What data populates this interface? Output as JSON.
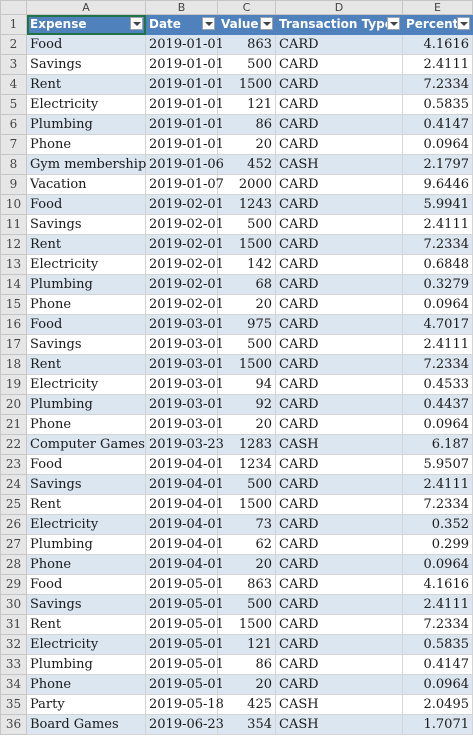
{
  "columns": [
    "A",
    "B",
    "C",
    "D",
    "E"
  ],
  "header": {
    "row_number": "1",
    "labels": [
      "Expense",
      "Date",
      "Value",
      "Transaction Type",
      "Percent"
    ]
  },
  "colors": {
    "header_bg": "#4f81bd",
    "band_bg": "#dce6f1",
    "grid": "#d4d4d4"
  },
  "rows": [
    {
      "n": "2",
      "expense": "Food",
      "date": "2019-01-01",
      "value": "863",
      "type": "CARD",
      "percent": "4.1616"
    },
    {
      "n": "3",
      "expense": "Savings",
      "date": "2019-01-01",
      "value": "500",
      "type": "CARD",
      "percent": "2.4111"
    },
    {
      "n": "4",
      "expense": "Rent",
      "date": "2019-01-01",
      "value": "1500",
      "type": "CARD",
      "percent": "7.2334"
    },
    {
      "n": "5",
      "expense": "Electricity",
      "date": "2019-01-01",
      "value": "121",
      "type": "CARD",
      "percent": "0.5835"
    },
    {
      "n": "6",
      "expense": "Plumbing",
      "date": "2019-01-01",
      "value": "86",
      "type": "CARD",
      "percent": "0.4147"
    },
    {
      "n": "7",
      "expense": "Phone",
      "date": "2019-01-01",
      "value": "20",
      "type": "CARD",
      "percent": "0.0964"
    },
    {
      "n": "8",
      "expense": "Gym membership",
      "date": "2019-01-06",
      "value": "452",
      "type": "CASH",
      "percent": "2.1797"
    },
    {
      "n": "9",
      "expense": "Vacation",
      "date": "2019-01-07",
      "value": "2000",
      "type": "CARD",
      "percent": "9.6446"
    },
    {
      "n": "10",
      "expense": "Food",
      "date": "2019-02-01",
      "value": "1243",
      "type": "CARD",
      "percent": "5.9941"
    },
    {
      "n": "11",
      "expense": "Savings",
      "date": "2019-02-01",
      "value": "500",
      "type": "CARD",
      "percent": "2.4111"
    },
    {
      "n": "12",
      "expense": "Rent",
      "date": "2019-02-01",
      "value": "1500",
      "type": "CARD",
      "percent": "7.2334"
    },
    {
      "n": "13",
      "expense": "Electricity",
      "date": "2019-02-01",
      "value": "142",
      "type": "CARD",
      "percent": "0.6848"
    },
    {
      "n": "14",
      "expense": "Plumbing",
      "date": "2019-02-01",
      "value": "68",
      "type": "CARD",
      "percent": "0.3279"
    },
    {
      "n": "15",
      "expense": "Phone",
      "date": "2019-02-01",
      "value": "20",
      "type": "CARD",
      "percent": "0.0964"
    },
    {
      "n": "16",
      "expense": "Food",
      "date": "2019-03-01",
      "value": "975",
      "type": "CARD",
      "percent": "4.7017"
    },
    {
      "n": "17",
      "expense": "Savings",
      "date": "2019-03-01",
      "value": "500",
      "type": "CARD",
      "percent": "2.4111"
    },
    {
      "n": "18",
      "expense": "Rent",
      "date": "2019-03-01",
      "value": "1500",
      "type": "CARD",
      "percent": "7.2334"
    },
    {
      "n": "19",
      "expense": "Electricity",
      "date": "2019-03-01",
      "value": "94",
      "type": "CARD",
      "percent": "0.4533"
    },
    {
      "n": "20",
      "expense": "Plumbing",
      "date": "2019-03-01",
      "value": "92",
      "type": "CARD",
      "percent": "0.4437"
    },
    {
      "n": "21",
      "expense": "Phone",
      "date": "2019-03-01",
      "value": "20",
      "type": "CARD",
      "percent": "0.0964"
    },
    {
      "n": "22",
      "expense": "Computer Games",
      "date": "2019-03-23",
      "value": "1283",
      "type": "CASH",
      "percent": "6.187"
    },
    {
      "n": "23",
      "expense": "Food",
      "date": "2019-04-01",
      "value": "1234",
      "type": "CARD",
      "percent": "5.9507"
    },
    {
      "n": "24",
      "expense": "Savings",
      "date": "2019-04-01",
      "value": "500",
      "type": "CARD",
      "percent": "2.4111"
    },
    {
      "n": "25",
      "expense": "Rent",
      "date": "2019-04-01",
      "value": "1500",
      "type": "CARD",
      "percent": "7.2334"
    },
    {
      "n": "26",
      "expense": "Electricity",
      "date": "2019-04-01",
      "value": "73",
      "type": "CARD",
      "percent": "0.352"
    },
    {
      "n": "27",
      "expense": "Plumbing",
      "date": "2019-04-01",
      "value": "62",
      "type": "CARD",
      "percent": "0.299"
    },
    {
      "n": "28",
      "expense": "Phone",
      "date": "2019-04-01",
      "value": "20",
      "type": "CARD",
      "percent": "0.0964"
    },
    {
      "n": "29",
      "expense": "Food",
      "date": "2019-05-01",
      "value": "863",
      "type": "CARD",
      "percent": "4.1616"
    },
    {
      "n": "30",
      "expense": "Savings",
      "date": "2019-05-01",
      "value": "500",
      "type": "CARD",
      "percent": "2.4111"
    },
    {
      "n": "31",
      "expense": "Rent",
      "date": "2019-05-01",
      "value": "1500",
      "type": "CARD",
      "percent": "7.2334"
    },
    {
      "n": "32",
      "expense": "Electricity",
      "date": "2019-05-01",
      "value": "121",
      "type": "CARD",
      "percent": "0.5835"
    },
    {
      "n": "33",
      "expense": "Plumbing",
      "date": "2019-05-01",
      "value": "86",
      "type": "CARD",
      "percent": "0.4147"
    },
    {
      "n": "34",
      "expense": "Phone",
      "date": "2019-05-01",
      "value": "20",
      "type": "CARD",
      "percent": "0.0964"
    },
    {
      "n": "35",
      "expense": "Party",
      "date": "2019-05-18",
      "value": "425",
      "type": "CASH",
      "percent": "2.0495"
    },
    {
      "n": "36",
      "expense": "Board Games",
      "date": "2019-06-23",
      "value": "354",
      "type": "CASH",
      "percent": "1.7071"
    }
  ]
}
